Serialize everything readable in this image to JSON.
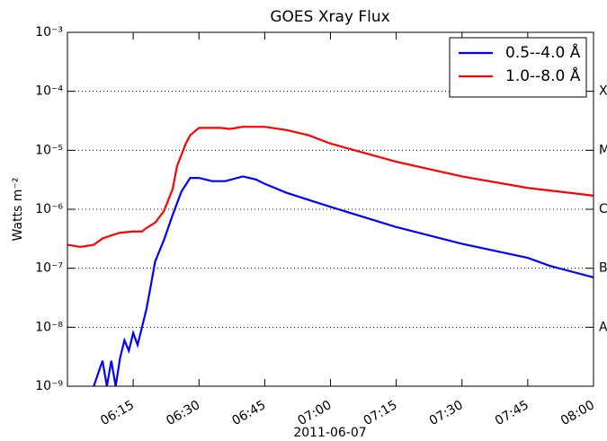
{
  "chart_data": {
    "type": "line",
    "title": "GOES Xray Flux",
    "xlabel": "2011-06-07",
    "ylabel": "Watts m⁻²",
    "xlim": [
      "06:00",
      "08:00"
    ],
    "xticks": [
      "06:15",
      "06:30",
      "06:45",
      "07:00",
      "07:15",
      "07:30",
      "07:45",
      "08:00"
    ],
    "ylim": [
      1e-09,
      0.001
    ],
    "log_y": true,
    "yticks": [
      {
        "value": 1e-09,
        "label": "10⁻⁹"
      },
      {
        "value": 1e-08,
        "label": "10⁻⁸"
      },
      {
        "value": 1e-07,
        "label": "10⁻⁷"
      },
      {
        "value": 1e-06,
        "label": "10⁻⁶"
      },
      {
        "value": 1e-05,
        "label": "10⁻⁵"
      },
      {
        "value": 0.0001,
        "label": "10⁻⁴"
      },
      {
        "value": 0.001,
        "label": "10⁻³"
      }
    ],
    "y2ticks": [
      {
        "value": 1e-08,
        "label": "A"
      },
      {
        "value": 1e-07,
        "label": "B"
      },
      {
        "value": 1e-06,
        "label": "C"
      },
      {
        "value": 1e-05,
        "label": "M"
      },
      {
        "value": 0.0001,
        "label": "X"
      }
    ],
    "grid": true,
    "legend": "upper right",
    "series": [
      {
        "name": "0.5--4.0 Å",
        "color": "#0000ff",
        "x": [
          "06:06",
          "06:08",
          "06:09",
          "06:10",
          "06:11",
          "06:12",
          "06:13",
          "06:14",
          "06:15",
          "06:16",
          "06:17",
          "06:18",
          "06:19",
          "06:20",
          "06:22",
          "06:24",
          "06:26",
          "06:28",
          "06:30",
          "06:33",
          "06:36",
          "06:40",
          "06:43",
          "06:45",
          "06:50",
          "07:00",
          "07:15",
          "07:30",
          "07:45",
          "07:50",
          "08:00"
        ],
        "values": [
          1e-09,
          2.7e-09,
          1e-09,
          2.7e-09,
          1e-09,
          3e-09,
          6e-09,
          4e-09,
          8e-09,
          5e-09,
          1e-08,
          2e-08,
          5e-08,
          1.3e-07,
          3e-07,
          8e-07,
          2e-06,
          3.4e-06,
          3.4e-06,
          3e-06,
          3e-06,
          3.6e-06,
          3.2e-06,
          2.7e-06,
          1.9e-06,
          1.1e-06,
          5e-07,
          2.6e-07,
          1.5e-07,
          1.1e-07,
          7e-08
        ]
      },
      {
        "name": "1.0--8.0 Å",
        "color": "#ff0000",
        "x": [
          "06:00",
          "06:03",
          "06:06",
          "06:08",
          "06:10",
          "06:12",
          "06:15",
          "06:17",
          "06:18",
          "06:20",
          "06:22",
          "06:24",
          "06:25",
          "06:27",
          "06:28",
          "06:30",
          "06:35",
          "06:37",
          "06:40",
          "06:45",
          "06:50",
          "06:55",
          "07:00",
          "07:15",
          "07:30",
          "07:45",
          "07:52",
          "08:00"
        ],
        "values": [
          2.5e-07,
          2.3e-07,
          2.5e-07,
          3.2e-07,
          3.6e-07,
          4e-07,
          4.2e-07,
          4.2e-07,
          4.8e-07,
          5.9e-07,
          9.3e-07,
          2.2e-06,
          5.4e-06,
          1.3e-05,
          1.8e-05,
          2.4e-05,
          2.4e-05,
          2.3e-05,
          2.5e-05,
          2.5e-05,
          2.2e-05,
          1.8e-05,
          1.3e-05,
          6.4e-06,
          3.6e-06,
          2.3e-06,
          2e-06,
          1.7e-06
        ]
      }
    ]
  }
}
